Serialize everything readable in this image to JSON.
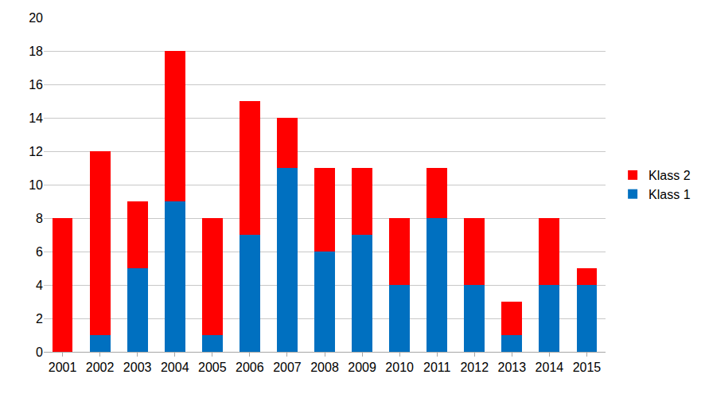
{
  "chart_data": {
    "type": "bar",
    "stacked": true,
    "categories": [
      "2001",
      "2002",
      "2003",
      "2004",
      "2005",
      "2006",
      "2007",
      "2008",
      "2009",
      "2010",
      "2011",
      "2012",
      "2013",
      "2014",
      "2015"
    ],
    "series": [
      {
        "name": "Klass 1",
        "color": "#0070c0",
        "values": [
          0,
          1,
          5,
          9,
          1,
          7,
          11,
          6,
          7,
          4,
          8,
          4,
          1,
          4,
          4
        ]
      },
      {
        "name": "Klass 2",
        "color": "#ff0000",
        "values": [
          8,
          11,
          4,
          9,
          7,
          8,
          3,
          5,
          4,
          4,
          3,
          4,
          2,
          4,
          1
        ]
      }
    ],
    "ylim": [
      0,
      20
    ],
    "yticks": [
      0,
      2,
      4,
      6,
      8,
      10,
      12,
      14,
      16,
      18,
      20
    ],
    "grid": true,
    "legend": "right"
  }
}
